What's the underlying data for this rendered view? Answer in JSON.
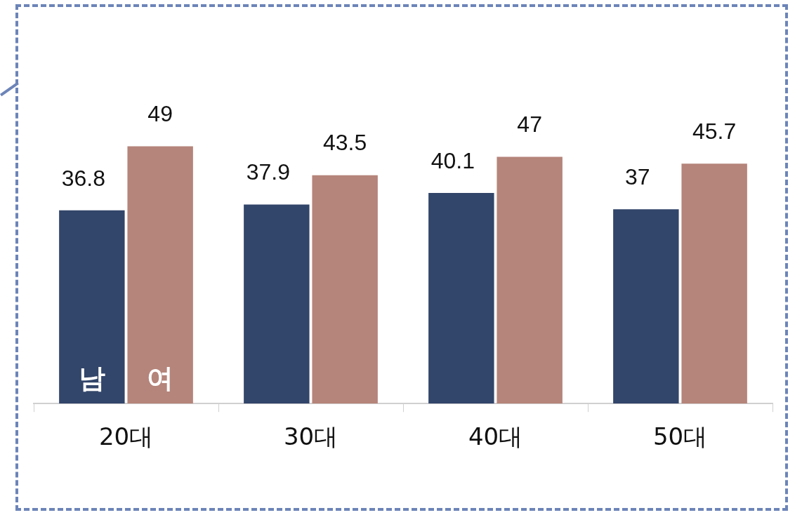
{
  "chart_data": {
    "type": "bar",
    "categories": [
      "20대",
      "30대",
      "40대",
      "50대"
    ],
    "series": [
      {
        "name": "남",
        "color": "#32456a",
        "values": [
          36.8,
          37.9,
          40.1,
          37
        ]
      },
      {
        "name": "여",
        "color": "#b5847a",
        "values": [
          49,
          43.5,
          47,
          45.7
        ]
      }
    ],
    "data_labels": true,
    "grid": false,
    "legend": false
  }
}
